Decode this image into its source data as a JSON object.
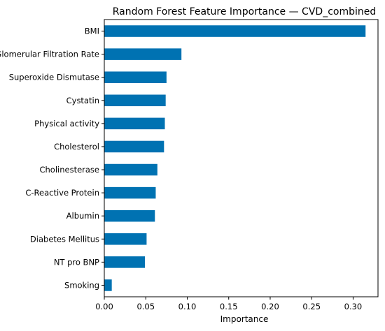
{
  "chart_data": {
    "type": "bar",
    "orientation": "horizontal",
    "title": "Random Forest Feature Importance — CVD_combined",
    "xlabel": "Importance",
    "ylabel": "",
    "xlim": [
      0,
      0.33
    ],
    "xticks": [
      0.0,
      0.05,
      0.1,
      0.15,
      0.2,
      0.25,
      0.3
    ],
    "xtick_labels": [
      "0.00",
      "0.05",
      "0.10",
      "0.15",
      "0.20",
      "0.25",
      "0.30"
    ],
    "grid": false,
    "legend": "none",
    "bar_color": "#0072b2",
    "categories": [
      "BMI",
      "Glomerular Filtration Rate",
      "Superoxide Dismutase",
      "Cystatin",
      "Physical activity",
      "Cholesterol",
      "Cholinesterase",
      "C-Reactive Protein",
      "Albumin",
      "Diabetes Mellitus",
      "NT pro BNP",
      "Smoking"
    ],
    "values": [
      0.315,
      0.093,
      0.075,
      0.074,
      0.073,
      0.072,
      0.064,
      0.062,
      0.061,
      0.051,
      0.049,
      0.009
    ]
  }
}
